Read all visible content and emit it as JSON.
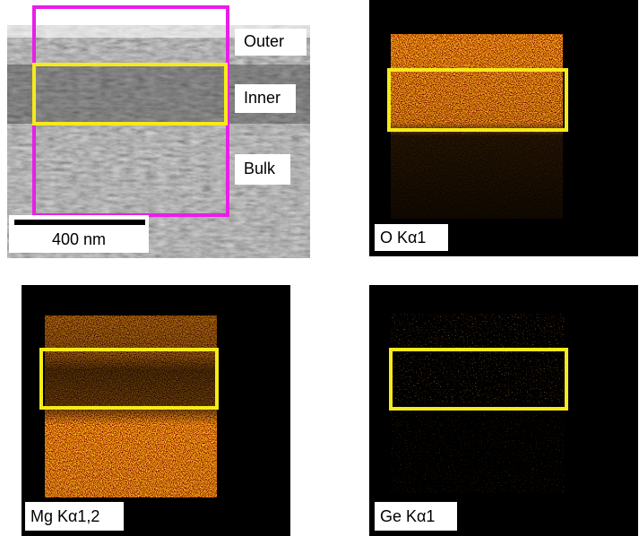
{
  "sem": {
    "labels": [
      "Outer",
      "Inner",
      "Bulk"
    ],
    "scale_bar": "400 nm"
  },
  "maps": [
    {
      "label": "O Kα1"
    },
    {
      "label": "Mg Kα1,2"
    },
    {
      "label": "Ge Kα1"
    }
  ]
}
